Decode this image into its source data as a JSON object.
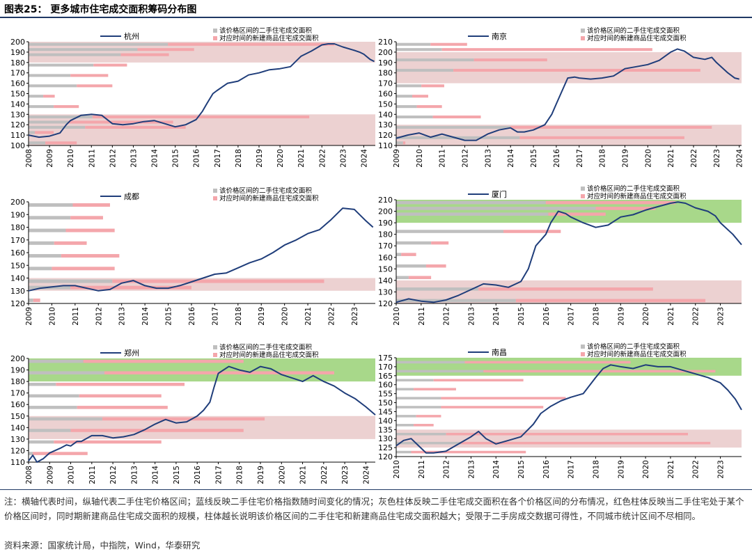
{
  "page": {
    "title": "图表25：  更多城市住宅成交面积筹码分布图",
    "note": "注：横轴代表时间，纵轴代表二手住宅价格区间；蓝线反映二手住宅价格指数随时间变化的情况；灰色柱体反映二手住宅成交面积在各个价格区间的分布情况，红色柱体反映当二手住宅处于某个价格区间时，同时期新建商品住宅成交面积的规模，柱体越长说明该价格区间的二手住宅和新建商品住宅成交面积越大；受限于二手房成交数据可得性，不同城市统计区间不尽相同。",
    "source": "资料来源：国家统计局，中指院，Wind，华泰研究"
  },
  "colors": {
    "line": "#1f3d7a",
    "gray_bar": "#bfbfbf",
    "pink_bar": "#f4a6ab",
    "band_red": "#ecd1d1",
    "band_green": "#a8d88a",
    "axis": "#000000"
  },
  "legend_labels": {
    "gray": "该价格区间的二手住宅成交面积",
    "pink": "对应时间的新建商品住宅成交面积"
  },
  "chart_data": [
    {
      "type": "line",
      "city": "杭州",
      "ylim": [
        100,
        200
      ],
      "yticks": [
        100,
        110,
        120,
        130,
        140,
        150,
        160,
        170,
        180,
        190,
        200
      ],
      "xlim": [
        2008,
        2024.55
      ],
      "xticks": [
        2008,
        2009,
        2010,
        2011,
        2012,
        2013,
        2014,
        2015,
        2016,
        2017,
        2018,
        2019,
        2020,
        2021,
        2022,
        2023,
        2024
      ],
      "bands": [
        {
          "from": 180,
          "to": 200,
          "color": "red"
        },
        {
          "from": 100,
          "to": 130,
          "color": "red"
        }
      ],
      "bars": [
        {
          "y": 197.5,
          "gray": 2014.65,
          "pink": 2022.6
        },
        {
          "y": 192.5,
          "gray": 2013.2,
          "pink": 2015.9
        },
        {
          "y": 187.5,
          "gray": 2012.4,
          "pink": 2014.7
        },
        {
          "y": 177.5,
          "gray": 2011.1,
          "pink": 2012.7
        },
        {
          "y": 167.5,
          "gray": 2010.0,
          "pink": 2011.8
        },
        {
          "y": 157.5,
          "gray": 2010.3,
          "pink": 2012.0
        },
        {
          "y": 147.5,
          "gray": 2008.7,
          "pink": 2009.25
        },
        {
          "y": 137.5,
          "gray": 2009.2,
          "pink": 2010.4
        },
        {
          "y": 127.5,
          "gray": 2011.05,
          "pink": 2021.4
        },
        {
          "y": 122.5,
          "gray": 2009.9,
          "pink": 2014.9
        },
        {
          "y": 117.5,
          "gray": 2010.7,
          "pink": 2015.5
        },
        {
          "y": 112.5,
          "gray": 2008.3,
          "pink": 2009.2
        },
        {
          "y": 102.5,
          "gray": 2008.8,
          "pink": 2010.3
        }
      ],
      "x": [
        2008,
        2008.5,
        2009,
        2009.5,
        2009.8,
        2010,
        2010.3,
        2010.5,
        2011,
        2011.5,
        2012,
        2012.5,
        2013,
        2013.5,
        2014,
        2014.5,
        2015,
        2015.5,
        2016,
        2016.3,
        2016.5,
        2016.8,
        2017,
        2017.5,
        2018,
        2018.5,
        2019,
        2019.5,
        2020,
        2020.5,
        2021,
        2021.5,
        2022,
        2022.3,
        2022.6,
        2023,
        2023.5,
        2023.8,
        2024,
        2024.3,
        2024.5
      ],
      "y": [
        110,
        108,
        109,
        112,
        120,
        124,
        127,
        129,
        130,
        129,
        121,
        120,
        121,
        123,
        124,
        121,
        118,
        120,
        125,
        133,
        140,
        150,
        153,
        160,
        162,
        168,
        170,
        173,
        174,
        176,
        186,
        191,
        197,
        198,
        198,
        195,
        192,
        190,
        188,
        183,
        181
      ]
    },
    {
      "type": "line",
      "city": "南京",
      "ylim": [
        110,
        210
      ],
      "yticks": [
        110,
        120,
        130,
        140,
        150,
        160,
        170,
        180,
        190,
        200,
        210
      ],
      "xlim": [
        2009,
        2024.1
      ],
      "xticks": [
        2009,
        2010,
        2011,
        2012,
        2013,
        2014,
        2015,
        2016,
        2017,
        2018,
        2019,
        2020,
        2021,
        2022,
        2023,
        2024
      ],
      "bands": [
        {
          "from": 170,
          "to": 200,
          "color": "red"
        },
        {
          "from": 110,
          "to": 130,
          "color": "red"
        }
      ],
      "bars": [
        {
          "y": 207.5,
          "gray": 2010.5,
          "pink": 2012.1
        },
        {
          "y": 202.5,
          "gray": 2011.0,
          "pink": 2020.2
        },
        {
          "y": 192.5,
          "gray": 2012.4,
          "pink": 2015.6
        },
        {
          "y": 182.5,
          "gray": 2011.5,
          "pink": 2022.3
        },
        {
          "y": 167.5,
          "gray": 2010.1,
          "pink": 2011.1
        },
        {
          "y": 157.5,
          "gray": 2009.7,
          "pink": 2010.4
        },
        {
          "y": 147.5,
          "gray": 2009.9,
          "pink": 2011.0
        },
        {
          "y": 137.5,
          "gray": 2010.6,
          "pink": 2012.7
        },
        {
          "y": 127.5,
          "gray": 2014.0,
          "pink": 2022.8
        },
        {
          "y": 117.5,
          "gray": 2014.4,
          "pink": 2021.6
        },
        {
          "y": 112.5,
          "gray": 2009.3,
          "pink": 2009.4
        }
      ],
      "x": [
        2009,
        2009.5,
        2010,
        2010.5,
        2011,
        2011.5,
        2012,
        2012.5,
        2013,
        2013.5,
        2014,
        2014.3,
        2014.6,
        2015,
        2015.5,
        2015.8,
        2016,
        2016.3,
        2016.5,
        2016.8,
        2017,
        2017.5,
        2018,
        2018.5,
        2019,
        2019.5,
        2020,
        2020.5,
        2021,
        2021.3,
        2021.6,
        2022,
        2022.5,
        2022.8,
        2023,
        2023.5,
        2023.8,
        2024
      ],
      "y": [
        117,
        120,
        122,
        118,
        121,
        118,
        115,
        115,
        121,
        125,
        127,
        123,
        123,
        125,
        130,
        140,
        150,
        165,
        175,
        176,
        175,
        174,
        175,
        177,
        184,
        186,
        188,
        192,
        200,
        203,
        201,
        195,
        193,
        195,
        190,
        180,
        175,
        174
      ]
    },
    {
      "type": "line",
      "city": "成都",
      "ylim": [
        120,
        200
      ],
      "yticks": [
        120,
        130,
        140,
        150,
        160,
        170,
        180,
        190,
        200
      ],
      "xlim": [
        2009,
        2023.9
      ],
      "xticks": [
        2009,
        2010,
        2011,
        2012,
        2013,
        2014,
        2015,
        2016,
        2017,
        2018,
        2019,
        2020,
        2021,
        2022,
        2023
      ],
      "bands": [
        {
          "from": 130,
          "to": 140,
          "color": "red"
        }
      ],
      "bars": [
        {
          "y": 197.5,
          "gray": 2010.9,
          "pink": 2012.5
        },
        {
          "y": 187.5,
          "gray": 2010.8,
          "pink": 2012.2
        },
        {
          "y": 177.5,
          "gray": 2010.6,
          "pink": 2012.7
        },
        {
          "y": 167.5,
          "gray": 2010.1,
          "pink": 2011.5
        },
        {
          "y": 157.5,
          "gray": 2010.4,
          "pink": 2012.9
        },
        {
          "y": 147.5,
          "gray": 2010.0,
          "pink": 2012.7
        },
        {
          "y": 137.5,
          "gray": 2012.6,
          "pink": 2021.7
        },
        {
          "y": 132.5,
          "gray": 2010.8,
          "pink": 2016.0
        },
        {
          "y": 122.5,
          "gray": 2009.2,
          "pink": 2009.5
        }
      ],
      "x": [
        2009,
        2009.5,
        2010,
        2010.5,
        2011,
        2011.5,
        2012,
        2012.5,
        2013,
        2013.5,
        2014,
        2014.5,
        2015,
        2015.5,
        2016,
        2016.5,
        2017,
        2017.5,
        2018,
        2018.5,
        2019,
        2019.5,
        2020,
        2020.5,
        2021,
        2021.5,
        2022,
        2022.5,
        2023,
        2023.5,
        2023.8
      ],
      "y": [
        130,
        132,
        133,
        134,
        134,
        132,
        130,
        131,
        136,
        138,
        134,
        132,
        132,
        134,
        137,
        140,
        143,
        144,
        148,
        152,
        155,
        160,
        166,
        170,
        175,
        178,
        186,
        195,
        194,
        185,
        180
      ]
    },
    {
      "type": "line",
      "city": "厦门",
      "ylim": [
        120,
        210
      ],
      "yticks": [
        120,
        130,
        140,
        150,
        160,
        170,
        180,
        190,
        200,
        210
      ],
      "xlim": [
        2010,
        2023.85
      ],
      "xticks": [
        2010,
        2011,
        2012,
        2013,
        2014,
        2015,
        2016,
        2017,
        2018,
        2019,
        2020,
        2021,
        2022,
        2023
      ],
      "bands": [
        {
          "from": 190,
          "to": 210,
          "color": "green"
        },
        {
          "from": 120,
          "to": 140,
          "color": "red"
        }
      ],
      "bars": [
        {
          "y": 207.5,
          "gray": 2016.0,
          "pink": 2021.2
        },
        {
          "y": 202.5,
          "gray": 2018.0,
          "pink": 2020.4
        },
        {
          "y": 197.5,
          "gray": 2016.1,
          "pink": 2018.4
        },
        {
          "y": 182.5,
          "gray": 2014.3,
          "pink": 2016.6
        },
        {
          "y": 172.5,
          "gray": 2011.4,
          "pink": 2012.1
        },
        {
          "y": 162.5,
          "gray": 2010.2,
          "pink": 2010.8
        },
        {
          "y": 152.5,
          "gray": 2011.2,
          "pink": 2012.0
        },
        {
          "y": 142.5,
          "gray": 2010.5,
          "pink": 2011.4
        },
        {
          "y": 132.5,
          "gray": 2013.3,
          "pink": 2020.3
        },
        {
          "y": 122.5,
          "gray": 2014.8,
          "pink": 2022.4
        }
      ],
      "x": [
        2010,
        2010.5,
        2011,
        2011.5,
        2012,
        2012.5,
        2013,
        2013.5,
        2014,
        2014.5,
        2015,
        2015.3,
        2015.6,
        2016,
        2016.2,
        2016.5,
        2016.8,
        2017,
        2017.5,
        2018,
        2018.5,
        2019,
        2019.5,
        2020,
        2020.5,
        2021,
        2021.3,
        2021.6,
        2022,
        2022.5,
        2022.8,
        2023,
        2023.5,
        2023.85
      ],
      "y": [
        121,
        124,
        122,
        121,
        123,
        127,
        132,
        137,
        136,
        134,
        139,
        150,
        170,
        180,
        190,
        200,
        198,
        195,
        190,
        186,
        188,
        195,
        197,
        201,
        204,
        207,
        208,
        207,
        203,
        200,
        196,
        190,
        180,
        171
      ]
    },
    {
      "type": "line",
      "city": "郑州",
      "ylim": [
        110,
        200
      ],
      "yticks": [
        110,
        120,
        130,
        140,
        150,
        160,
        170,
        180,
        190,
        200
      ],
      "xlim": [
        2008,
        2024.45
      ],
      "xticks": [
        2008,
        2009,
        2010,
        2011,
        2012,
        2013,
        2014,
        2015,
        2016,
        2017,
        2018,
        2019,
        2020,
        2021,
        2022,
        2023,
        2024
      ],
      "bands": [
        {
          "from": 180,
          "to": 200,
          "color": "green"
        },
        {
          "from": 130,
          "to": 150,
          "color": "red"
        }
      ],
      "bars": [
        {
          "y": 197.5,
          "gray": 2010.6,
          "pink": 2018.2
        },
        {
          "y": 187.5,
          "gray": 2011.6,
          "pink": 2022.5
        },
        {
          "y": 177.5,
          "gray": 2009.3,
          "pink": 2015.4
        },
        {
          "y": 167.5,
          "gray": 2010.4,
          "pink": 2014.3
        },
        {
          "y": 157.5,
          "gray": 2010.3,
          "pink": 2014.6
        },
        {
          "y": 147.5,
          "gray": 2011.5,
          "pink": 2019.2
        },
        {
          "y": 137.5,
          "gray": 2010.0,
          "pink": 2018.2
        },
        {
          "y": 127.5,
          "gray": 2009.2,
          "pink": 2014.3
        },
        {
          "y": 117.5,
          "gray": 2008.2,
          "pink": 2010.8
        }
      ],
      "x": [
        2008,
        2008.2,
        2008.4,
        2008.7,
        2009,
        2009.5,
        2009.8,
        2010,
        2010.3,
        2010.5,
        2011,
        2011.5,
        2012,
        2012.5,
        2013,
        2013.5,
        2014,
        2014.5,
        2015,
        2015.5,
        2016,
        2016.3,
        2016.6,
        2016.8,
        2017,
        2017.5,
        2018,
        2018.5,
        2019,
        2019.5,
        2020,
        2020.5,
        2021,
        2021.5,
        2022,
        2022.5,
        2023,
        2023.5,
        2024,
        2024.45
      ],
      "y": [
        111,
        116,
        110,
        113,
        118,
        122,
        125,
        124,
        128,
        128,
        133,
        133,
        131,
        132,
        134,
        138,
        143,
        147,
        144,
        145,
        150,
        155,
        162,
        175,
        187,
        193,
        190,
        188,
        193,
        191,
        186,
        183,
        180,
        185,
        180,
        176,
        170,
        165,
        158,
        151
      ]
    },
    {
      "type": "line",
      "city": "南昌",
      "ylim": [
        120,
        175
      ],
      "yticks": [
        120,
        125,
        130,
        135,
        140,
        145,
        150,
        155,
        160,
        165,
        170,
        175
      ],
      "xlim": [
        2010,
        2023.85
      ],
      "xticks": [
        2010,
        2011,
        2012,
        2013,
        2014,
        2015,
        2016,
        2017,
        2018,
        2019,
        2020,
        2021,
        2022,
        2023
      ],
      "bands": [
        {
          "from": 165,
          "to": 175,
          "color": "green"
        },
        {
          "from": 125,
          "to": 135,
          "color": "red"
        }
      ],
      "bars": [
        {
          "y": 172.5,
          "gray": 2012.75,
          "pink": 2019.4
        },
        {
          "y": 167.5,
          "gray": 2013.5,
          "pink": 2022.8
        },
        {
          "y": 162.5,
          "gray": 2011.5,
          "pink": 2015.1
        },
        {
          "y": 157.5,
          "gray": 2010.7,
          "pink": 2012.4
        },
        {
          "y": 152.5,
          "gray": 2011.8,
          "pink": 2016.8
        },
        {
          "y": 147.5,
          "gray": 2011.8,
          "pink": 2015.9
        },
        {
          "y": 142.5,
          "gray": 2010.8,
          "pink": 2011.8
        },
        {
          "y": 137.5,
          "gray": 2010.7,
          "pink": 2011.5
        },
        {
          "y": 132.5,
          "gray": 2012.0,
          "pink": 2021.7
        },
        {
          "y": 127.5,
          "gray": 2012.6,
          "pink": 2022.6
        },
        {
          "y": 122.5,
          "gray": 2010.6,
          "pink": 2015.2
        }
      ],
      "x": [
        2010,
        2010.3,
        2010.6,
        2010.9,
        2011.2,
        2011.5,
        2012,
        2012.5,
        2013,
        2013.3,
        2013.6,
        2014,
        2014.5,
        2015,
        2015.5,
        2015.8,
        2016.2,
        2016.6,
        2017,
        2017.5,
        2018,
        2018.3,
        2018.6,
        2019,
        2019.5,
        2020,
        2020.5,
        2021,
        2021.5,
        2022,
        2022.5,
        2023,
        2023.3,
        2023.6,
        2023.85
      ],
      "y": [
        126,
        129,
        130,
        126,
        122,
        122,
        123,
        127,
        131,
        134,
        130,
        127,
        129,
        131,
        138,
        144,
        148,
        151,
        153,
        155,
        164,
        169,
        171,
        170,
        169,
        171,
        170,
        170,
        168,
        166,
        164,
        161,
        157,
        152,
        146
      ]
    }
  ]
}
